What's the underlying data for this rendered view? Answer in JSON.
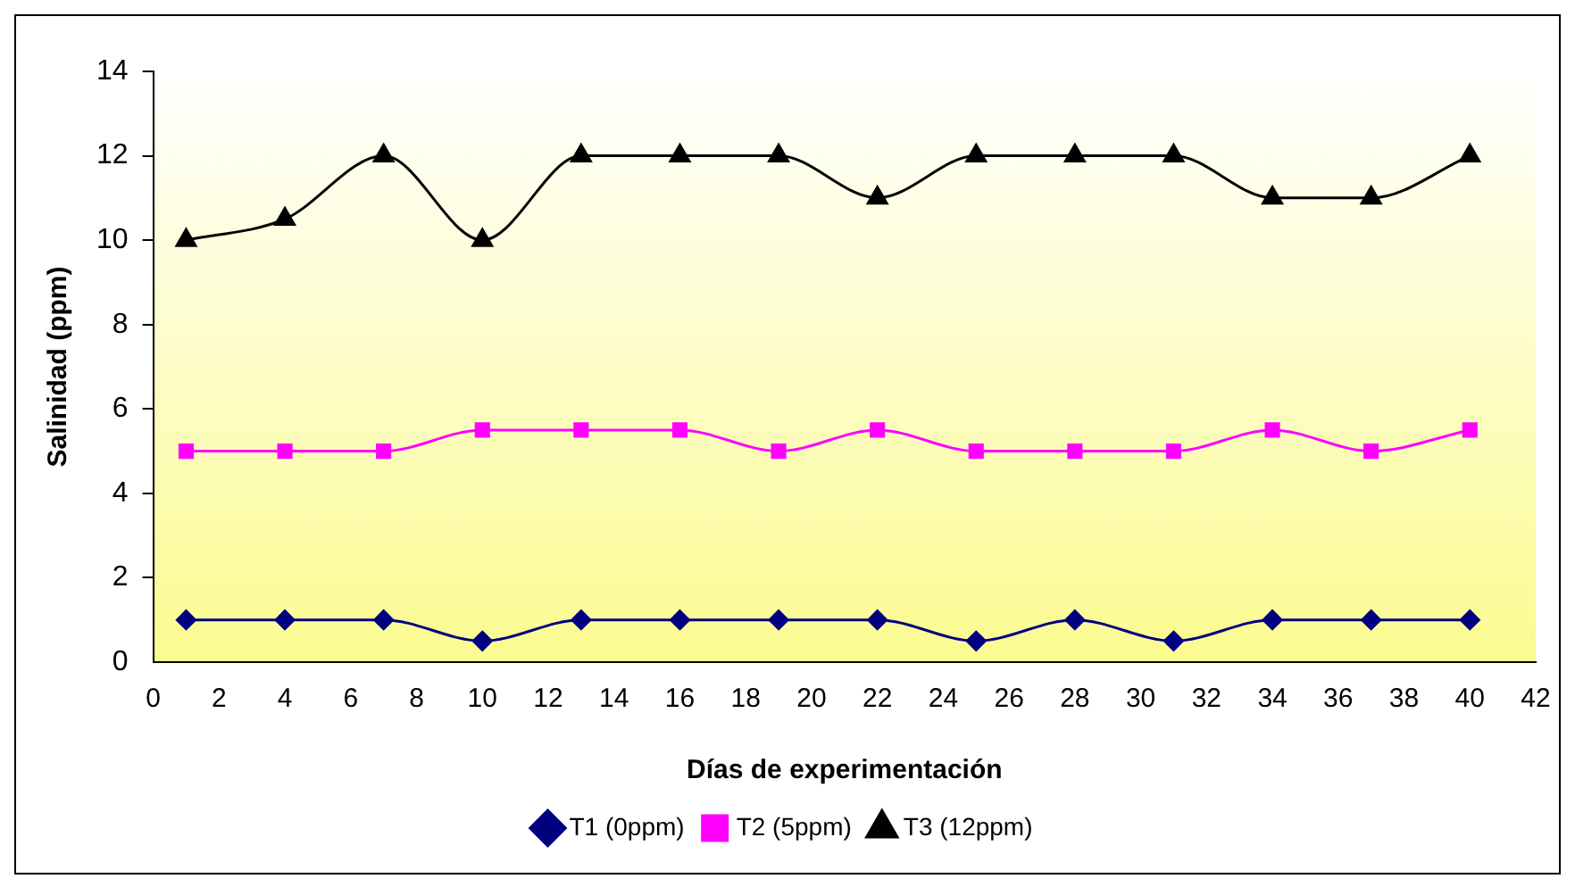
{
  "chart_data": {
    "type": "line",
    "xlabel": "Días de experimentación",
    "ylabel": "Salinidad (ppm)",
    "x": [
      1,
      4,
      7,
      10,
      13,
      16,
      19,
      22,
      25,
      28,
      31,
      34,
      37,
      40
    ],
    "xlim": [
      0,
      42
    ],
    "xticks": [
      0,
      2,
      4,
      6,
      8,
      10,
      12,
      14,
      16,
      18,
      20,
      22,
      24,
      26,
      28,
      30,
      32,
      34,
      36,
      38,
      40,
      42
    ],
    "ylim": [
      0,
      14
    ],
    "yticks": [
      0,
      2,
      4,
      6,
      8,
      10,
      12,
      14
    ],
    "grid": false,
    "legend": "bottom",
    "line_style": "solid",
    "series": [
      {
        "name": "T1 (0ppm)",
        "color": "#000080",
        "marker": "diamond",
        "values": [
          1,
          1,
          1,
          0.5,
          1,
          1,
          1,
          1,
          0.5,
          1,
          0.5,
          1,
          1,
          1
        ]
      },
      {
        "name": "T2 (5ppm)",
        "color": "#ff00ff",
        "marker": "square",
        "values": [
          5,
          5,
          5,
          5.5,
          5.5,
          5.5,
          5,
          5.5,
          5,
          5,
          5,
          5.5,
          5,
          5.5
        ]
      },
      {
        "name": "T3 (12ppm)",
        "color": "#000000",
        "marker": "triangle",
        "values": [
          10,
          10.5,
          12,
          10,
          12,
          12,
          12,
          11,
          12,
          12,
          12,
          11,
          11,
          12
        ]
      }
    ]
  }
}
